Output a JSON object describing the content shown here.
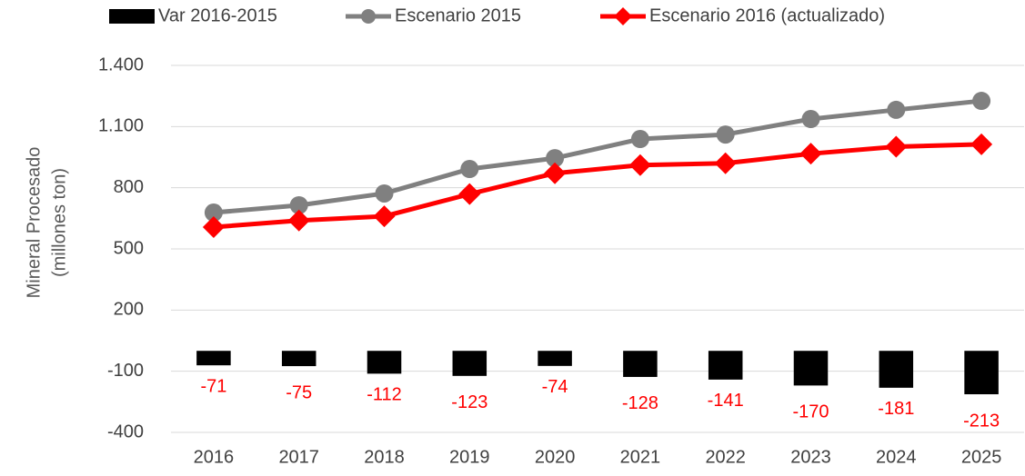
{
  "chart_data": {
    "type": "combo",
    "y_label": [
      "Mineral Procesado",
      "(millones ton)"
    ],
    "categories": [
      "2016",
      "2017",
      "2018",
      "2019",
      "2020",
      "2021",
      "2022",
      "2023",
      "2024",
      "2025"
    ],
    "series": [
      {
        "name": "Var 2016-2015",
        "type": "bar",
        "color": "#000000",
        "label_color": "#ff0000",
        "values": [
          -71,
          -75,
          -112,
          -123,
          -74,
          -128,
          -141,
          -170,
          -181,
          -213
        ]
      },
      {
        "name": "Escenario 2015",
        "type": "line",
        "marker": "circle",
        "color": "#808080",
        "values": [
          678,
          714,
          772,
          892,
          945,
          1039,
          1061,
          1137,
          1182,
          1226
        ]
      },
      {
        "name": "Escenario 2016 (actualizado)",
        "type": "line",
        "marker": "diamond",
        "color": "#ff0000",
        "values": [
          607,
          639,
          660,
          769,
          871,
          911,
          920,
          967,
          1001,
          1013
        ]
      }
    ],
    "ylim": [
      -400,
      1400
    ],
    "yticks": [
      -400,
      -100,
      200,
      500,
      800,
      {
        "value": 1100,
        "label": "1.100"
      },
      {
        "value": 1400,
        "label": "1.400"
      }
    ],
    "grid": true,
    "legend": "top"
  }
}
